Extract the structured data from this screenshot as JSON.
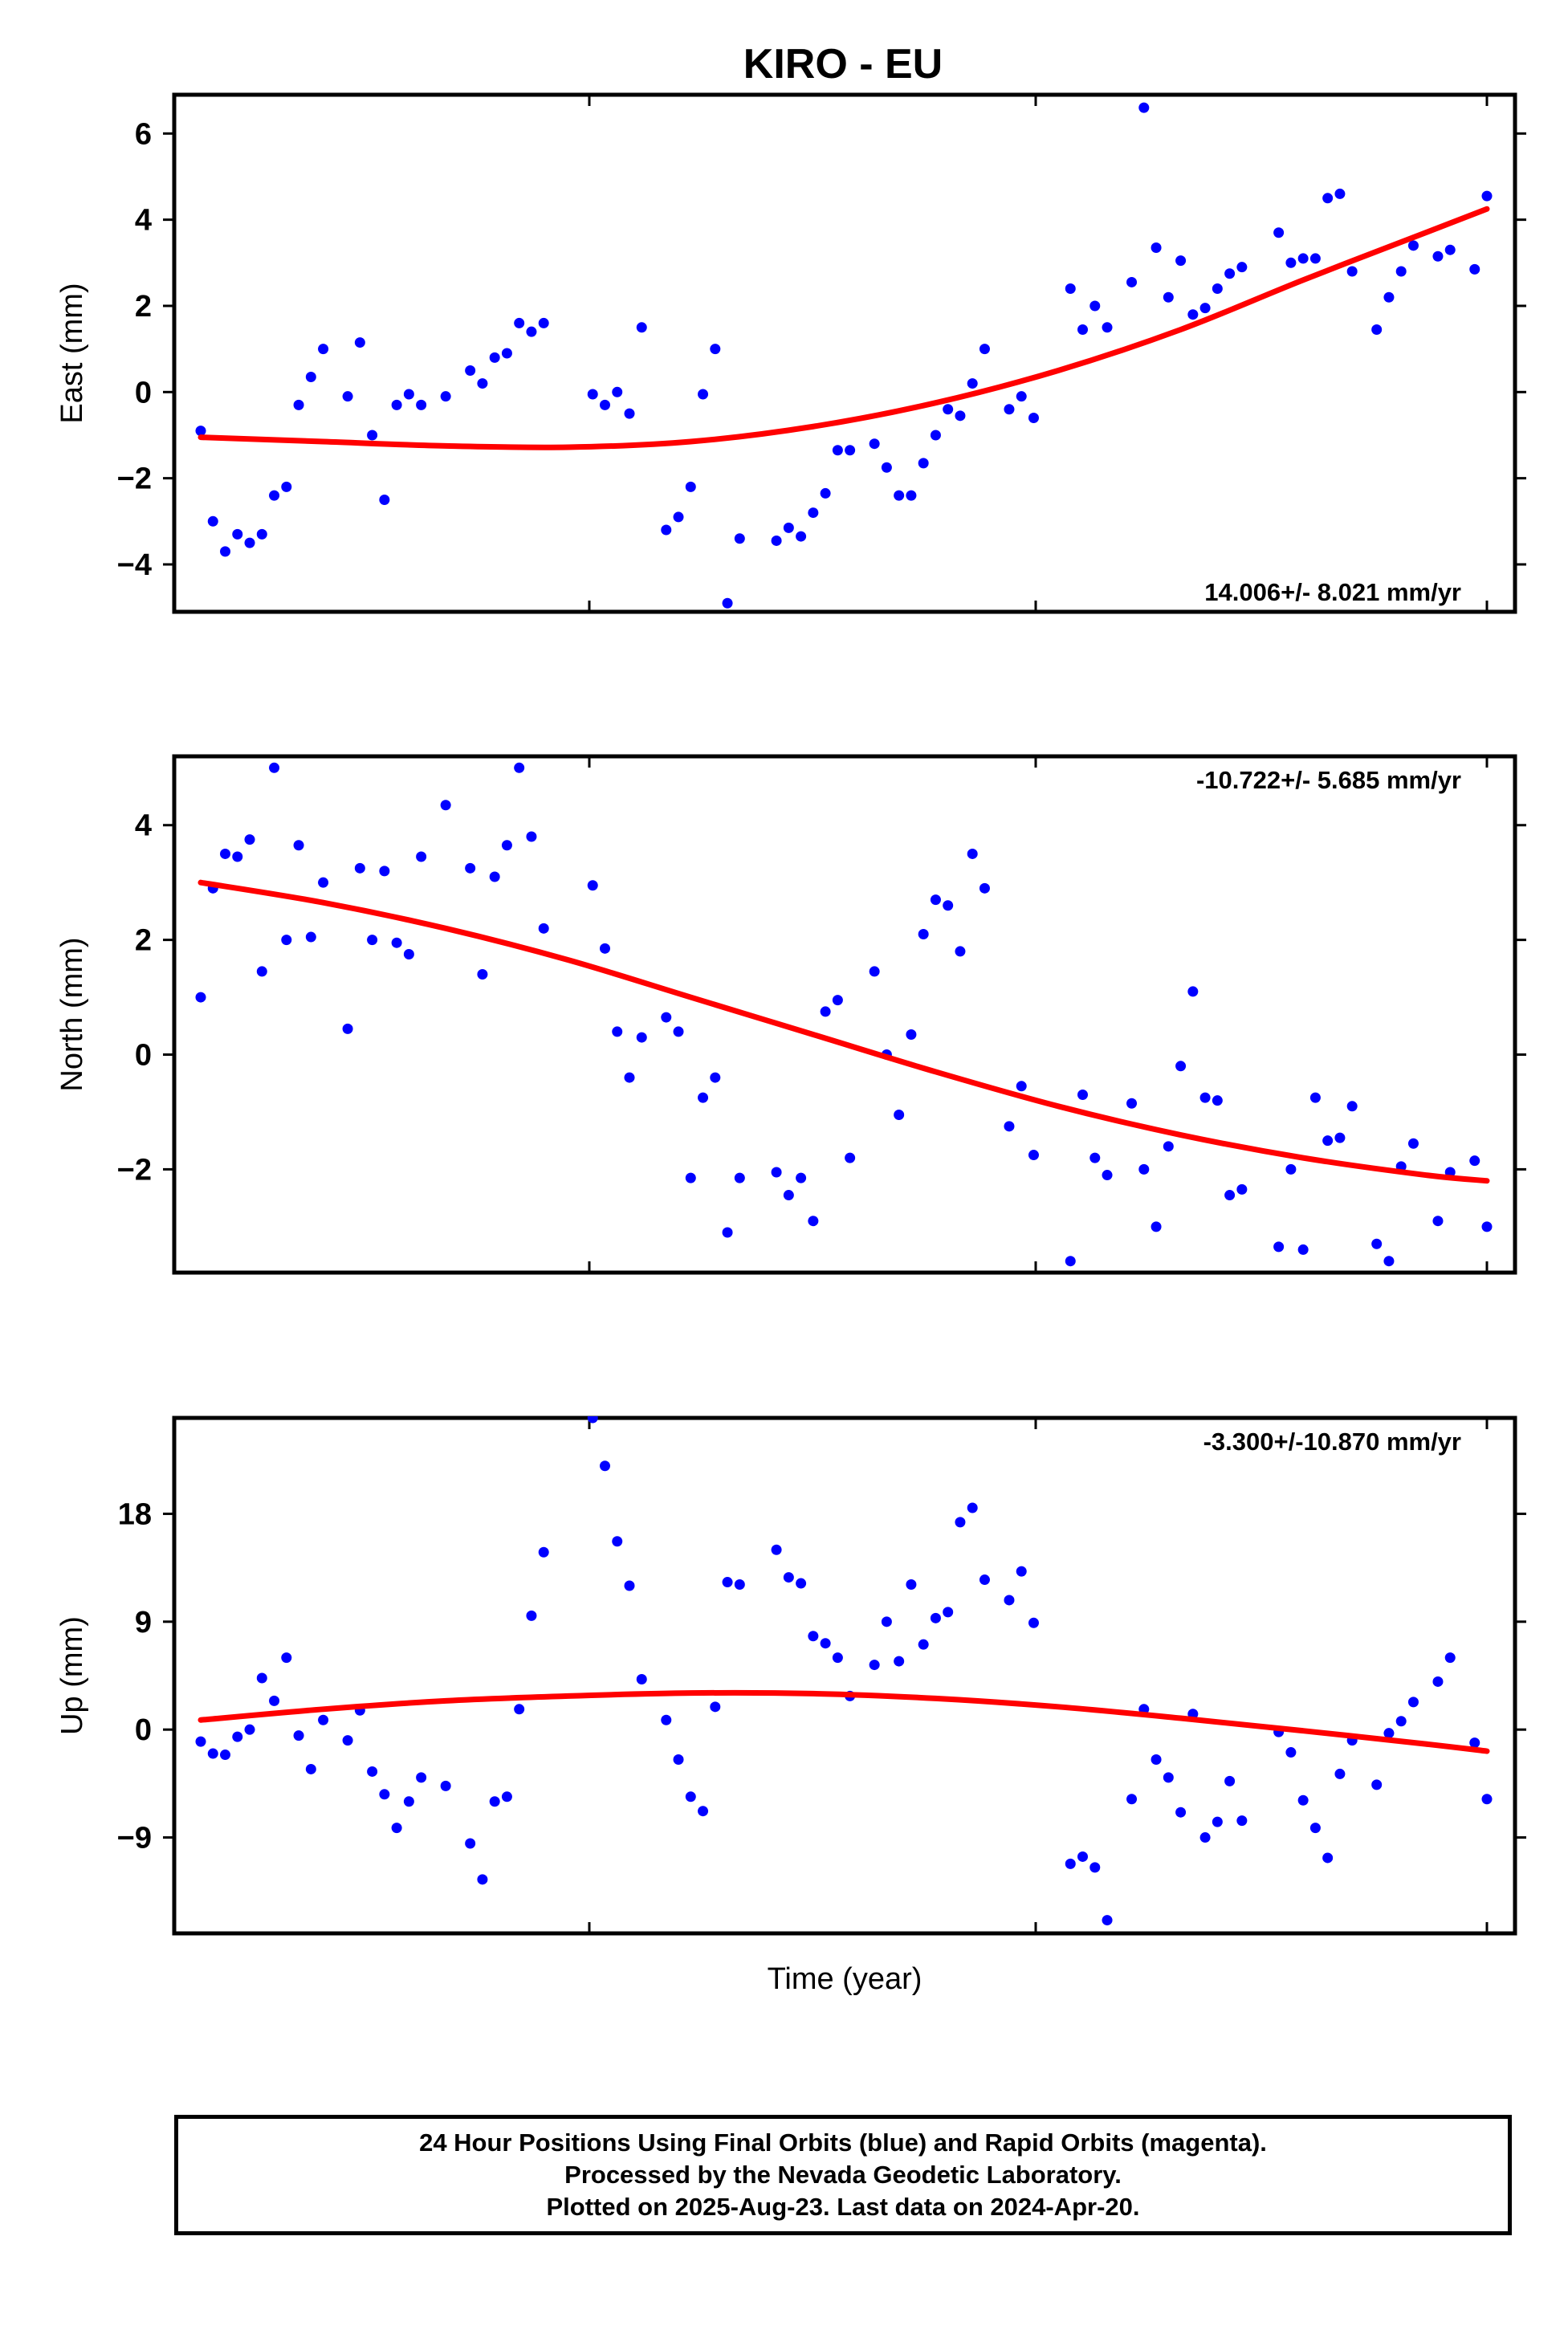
{
  "title": "KIRO - EU",
  "xlabel": "Time (year)",
  "footer": {
    "line1": "24 Hour Positions Using Final Orbits (blue) and Rapid Orbits (magenta).",
    "line2": "Processed by the Nevada Geodetic Laboratory.",
    "line3": "Plotted on 2025-Aug-23. Last data on 2024-Apr-20."
  },
  "colors": {
    "points": "#0000ff",
    "fit": "#ff0000",
    "frame": "#000000"
  },
  "chart_data": [
    {
      "type": "scatter",
      "panel": "east",
      "ylabel": "East (mm)",
      "rate_label": "14.006+/- 8.021 mm/yr",
      "rate_label_position": "bottom-right",
      "ylim": [
        -5.1,
        6.9
      ],
      "yticks": [
        -4,
        -2,
        0,
        2,
        4,
        6
      ],
      "ytick_labels": [
        "−4",
        "−2",
        "0",
        "2",
        "4",
        "6"
      ],
      "xlim": [
        0,
        110
      ],
      "points": [
        [
          0,
          -0.9
        ],
        [
          1,
          -3.0
        ],
        [
          2,
          -3.7
        ],
        [
          3,
          -3.3
        ],
        [
          4,
          -3.5
        ],
        [
          5,
          -3.3
        ],
        [
          6,
          -2.4
        ],
        [
          7,
          -2.2
        ],
        [
          8,
          -0.3
        ],
        [
          9,
          0.35
        ],
        [
          10,
          1.0
        ],
        [
          12,
          -0.1
        ],
        [
          13,
          1.15
        ],
        [
          14,
          -1.0
        ],
        [
          15,
          -2.5
        ],
        [
          16,
          -0.3
        ],
        [
          17,
          -0.05
        ],
        [
          18,
          -0.3
        ],
        [
          20,
          -0.1
        ],
        [
          22,
          0.5
        ],
        [
          23,
          0.2
        ],
        [
          24,
          0.8
        ],
        [
          25,
          0.9
        ],
        [
          26,
          1.6
        ],
        [
          27,
          1.4
        ],
        [
          28,
          1.6
        ],
        [
          32,
          -0.05
        ],
        [
          33,
          -0.3
        ],
        [
          34,
          0.0
        ],
        [
          35,
          -0.5
        ],
        [
          36,
          1.5
        ],
        [
          38,
          -3.2
        ],
        [
          39,
          -2.9
        ],
        [
          40,
          -2.2
        ],
        [
          41,
          -0.05
        ],
        [
          42,
          1.0
        ],
        [
          43,
          -4.9
        ],
        [
          44,
          -3.4
        ],
        [
          47,
          -3.45
        ],
        [
          48,
          -3.15
        ],
        [
          49,
          -3.35
        ],
        [
          50,
          -2.8
        ],
        [
          51,
          -2.35
        ],
        [
          52,
          -1.35
        ],
        [
          53,
          -1.35
        ],
        [
          55,
          -1.2
        ],
        [
          56,
          -1.75
        ],
        [
          57,
          -2.4
        ],
        [
          58,
          -2.4
        ],
        [
          59,
          -1.65
        ],
        [
          60,
          -1.0
        ],
        [
          61,
          -0.4
        ],
        [
          62,
          -0.55
        ],
        [
          63,
          0.2
        ],
        [
          64,
          1.0
        ],
        [
          66,
          -0.4
        ],
        [
          67,
          -0.1
        ],
        [
          68,
          -0.6
        ],
        [
          71,
          2.4
        ],
        [
          72,
          1.45
        ],
        [
          73,
          2.0
        ],
        [
          74,
          1.5
        ],
        [
          76,
          2.55
        ],
        [
          77,
          6.6
        ],
        [
          78,
          3.35
        ],
        [
          79,
          2.2
        ],
        [
          80,
          3.05
        ],
        [
          81,
          1.8
        ],
        [
          82,
          1.95
        ],
        [
          83,
          2.4
        ],
        [
          84,
          2.75
        ],
        [
          85,
          2.9
        ],
        [
          88,
          3.7
        ],
        [
          89,
          3.0
        ],
        [
          90,
          3.1
        ],
        [
          91,
          3.1
        ],
        [
          92,
          4.5
        ],
        [
          93,
          4.6
        ],
        [
          94,
          2.8
        ],
        [
          96,
          1.45
        ],
        [
          97,
          2.2
        ],
        [
          98,
          2.8
        ],
        [
          99,
          3.4
        ],
        [
          101,
          3.15
        ],
        [
          102,
          3.3
        ],
        [
          104,
          2.85
        ],
        [
          105,
          4.55
        ]
      ],
      "fit": [
        [
          0,
          -1.05
        ],
        [
          10,
          -1.15
        ],
        [
          20,
          -1.25
        ],
        [
          30,
          -1.28
        ],
        [
          40,
          -1.15
        ],
        [
          50,
          -0.8
        ],
        [
          60,
          -0.25
        ],
        [
          70,
          0.5
        ],
        [
          80,
          1.45
        ],
        [
          90,
          2.6
        ],
        [
          100,
          3.7
        ],
        [
          105,
          4.25
        ]
      ]
    },
    {
      "type": "scatter",
      "panel": "north",
      "ylabel": "North (mm)",
      "rate_label": "-10.722+/- 5.685 mm/yr",
      "rate_label_position": "top-right",
      "ylim": [
        -3.8,
        5.2
      ],
      "yticks": [
        -2,
        0,
        2,
        4
      ],
      "ytick_labels": [
        "−2",
        "0",
        "2",
        "4"
      ],
      "xlim": [
        0,
        110
      ],
      "points": [
        [
          0,
          1.0
        ],
        [
          1,
          2.9
        ],
        [
          2,
          3.5
        ],
        [
          3,
          3.45
        ],
        [
          4,
          3.75
        ],
        [
          5,
          1.45
        ],
        [
          6,
          5.0
        ],
        [
          7,
          2.0
        ],
        [
          8,
          3.65
        ],
        [
          9,
          2.05
        ],
        [
          10,
          3.0
        ],
        [
          12,
          0.45
        ],
        [
          13,
          3.25
        ],
        [
          14,
          2.0
        ],
        [
          15,
          3.2
        ],
        [
          16,
          1.95
        ],
        [
          17,
          1.75
        ],
        [
          18,
          3.45
        ],
        [
          20,
          4.35
        ],
        [
          22,
          3.25
        ],
        [
          23,
          1.4
        ],
        [
          24,
          3.1
        ],
        [
          25,
          3.65
        ],
        [
          26,
          5.0
        ],
        [
          27,
          3.8
        ],
        [
          28,
          2.2
        ],
        [
          32,
          2.95
        ],
        [
          33,
          1.85
        ],
        [
          34,
          0.4
        ],
        [
          35,
          -0.4
        ],
        [
          36,
          0.3
        ],
        [
          38,
          0.65
        ],
        [
          39,
          0.4
        ],
        [
          40,
          -2.15
        ],
        [
          41,
          -0.75
        ],
        [
          42,
          -0.4
        ],
        [
          43,
          -3.1
        ],
        [
          44,
          -2.15
        ],
        [
          47,
          -2.05
        ],
        [
          48,
          -2.45
        ],
        [
          49,
          -2.15
        ],
        [
          50,
          -2.9
        ],
        [
          51,
          0.75
        ],
        [
          52,
          0.95
        ],
        [
          53,
          -1.8
        ],
        [
          55,
          1.45
        ],
        [
          56,
          0.0
        ],
        [
          57,
          -1.05
        ],
        [
          58,
          0.35
        ],
        [
          59,
          2.1
        ],
        [
          60,
          2.7
        ],
        [
          61,
          2.6
        ],
        [
          62,
          1.8
        ],
        [
          63,
          3.5
        ],
        [
          64,
          2.9
        ],
        [
          66,
          -1.25
        ],
        [
          67,
          -0.55
        ],
        [
          68,
          -1.75
        ],
        [
          71,
          -3.6
        ],
        [
          72,
          -0.7
        ],
        [
          73,
          -1.8
        ],
        [
          74,
          -2.1
        ],
        [
          76,
          -0.85
        ],
        [
          77,
          -2.0
        ],
        [
          78,
          -3.0
        ],
        [
          79,
          -1.6
        ],
        [
          80,
          -0.2
        ],
        [
          81,
          1.1
        ],
        [
          82,
          -0.75
        ],
        [
          83,
          -0.8
        ],
        [
          84,
          -2.45
        ],
        [
          85,
          -2.35
        ],
        [
          88,
          -3.35
        ],
        [
          89,
          -2.0
        ],
        [
          90,
          -3.4
        ],
        [
          91,
          -0.75
        ],
        [
          92,
          -1.5
        ],
        [
          93,
          -1.45
        ],
        [
          94,
          -0.9
        ],
        [
          96,
          -3.3
        ],
        [
          97,
          -3.6
        ],
        [
          98,
          -1.95
        ],
        [
          99,
          -1.55
        ],
        [
          101,
          -2.9
        ],
        [
          102,
          -2.05
        ],
        [
          104,
          -1.85
        ],
        [
          105,
          -3.0
        ]
      ],
      "fit": [
        [
          0,
          3.0
        ],
        [
          10,
          2.65
        ],
        [
          20,
          2.2
        ],
        [
          30,
          1.65
        ],
        [
          40,
          1.0
        ],
        [
          50,
          0.35
        ],
        [
          60,
          -0.3
        ],
        [
          70,
          -0.9
        ],
        [
          80,
          -1.4
        ],
        [
          90,
          -1.8
        ],
        [
          100,
          -2.1
        ],
        [
          105,
          -2.2
        ]
      ]
    },
    {
      "type": "scatter",
      "panel": "up",
      "ylabel": "Up (mm)",
      "rate_label": "-3.300+/-10.870 mm/yr",
      "rate_label_position": "top-right",
      "ylim": [
        -17,
        26
      ],
      "yticks": [
        -9,
        0,
        9,
        18
      ],
      "ytick_labels": [
        "−9",
        "0",
        "9",
        "18"
      ],
      "xlim": [
        0,
        110
      ],
      "points": [
        [
          0,
          -1.0
        ],
        [
          1,
          -2.0
        ],
        [
          2,
          -2.1
        ],
        [
          3,
          -0.6
        ],
        [
          4,
          0.0
        ],
        [
          5,
          4.3
        ],
        [
          6,
          2.4
        ],
        [
          7,
          6.0
        ],
        [
          8,
          -0.5
        ],
        [
          9,
          -3.3
        ],
        [
          10,
          0.8
        ],
        [
          12,
          -0.9
        ],
        [
          13,
          1.6
        ],
        [
          14,
          -3.5
        ],
        [
          15,
          -5.4
        ],
        [
          16,
          -8.2
        ],
        [
          17,
          -6.0
        ],
        [
          18,
          -4.0
        ],
        [
          20,
          -4.7
        ],
        [
          22,
          -9.5
        ],
        [
          23,
          -12.5
        ],
        [
          24,
          -6.0
        ],
        [
          25,
          -5.6
        ],
        [
          26,
          1.7
        ],
        [
          27,
          9.5
        ],
        [
          28,
          14.8
        ],
        [
          32,
          26.0
        ],
        [
          33,
          22.0
        ],
        [
          34,
          15.7
        ],
        [
          35,
          12.0
        ],
        [
          36,
          4.2
        ],
        [
          38,
          0.8
        ],
        [
          39,
          -2.5
        ],
        [
          40,
          -5.6
        ],
        [
          41,
          -6.8
        ],
        [
          42,
          1.9
        ],
        [
          43,
          12.3
        ],
        [
          44,
          12.1
        ],
        [
          47,
          15.0
        ],
        [
          48,
          12.7
        ],
        [
          49,
          12.2
        ],
        [
          50,
          7.8
        ],
        [
          51,
          7.2
        ],
        [
          52,
          6.0
        ],
        [
          53,
          2.8
        ],
        [
          55,
          5.4
        ],
        [
          56,
          9.0
        ],
        [
          57,
          5.7
        ],
        [
          58,
          12.1
        ],
        [
          59,
          7.1
        ],
        [
          60,
          9.3
        ],
        [
          61,
          9.8
        ],
        [
          62,
          17.3
        ],
        [
          63,
          18.5
        ],
        [
          64,
          12.5
        ],
        [
          66,
          10.8
        ],
        [
          67,
          13.2
        ],
        [
          68,
          8.9
        ],
        [
          71,
          -11.2
        ],
        [
          72,
          -10.6
        ],
        [
          73,
          -11.5
        ],
        [
          74,
          -15.9
        ],
        [
          76,
          -5.8
        ],
        [
          77,
          1.7
        ],
        [
          78,
          -2.5
        ],
        [
          79,
          -4.0
        ],
        [
          80,
          -6.9
        ],
        [
          81,
          1.3
        ],
        [
          82,
          -9.0
        ],
        [
          83,
          -7.7
        ],
        [
          84,
          -4.3
        ],
        [
          85,
          -7.6
        ],
        [
          88,
          -0.2
        ],
        [
          89,
          -1.9
        ],
        [
          90,
          -5.9
        ],
        [
          91,
          -8.2
        ],
        [
          92,
          -10.7
        ],
        [
          93,
          -3.7
        ],
        [
          94,
          -0.9
        ],
        [
          96,
          -4.6
        ],
        [
          97,
          -0.3
        ],
        [
          98,
          0.7
        ],
        [
          99,
          2.3
        ],
        [
          101,
          4.0
        ],
        [
          102,
          6.0
        ],
        [
          104,
          -1.1
        ],
        [
          105,
          -5.8
        ]
      ],
      "fit": [
        [
          0,
          0.8
        ],
        [
          10,
          1.7
        ],
        [
          20,
          2.4
        ],
        [
          30,
          2.8
        ],
        [
          40,
          3.05
        ],
        [
          50,
          3.0
        ],
        [
          60,
          2.6
        ],
        [
          70,
          1.9
        ],
        [
          80,
          0.95
        ],
        [
          90,
          -0.1
        ],
        [
          100,
          -1.2
        ],
        [
          105,
          -1.8
        ]
      ]
    }
  ]
}
